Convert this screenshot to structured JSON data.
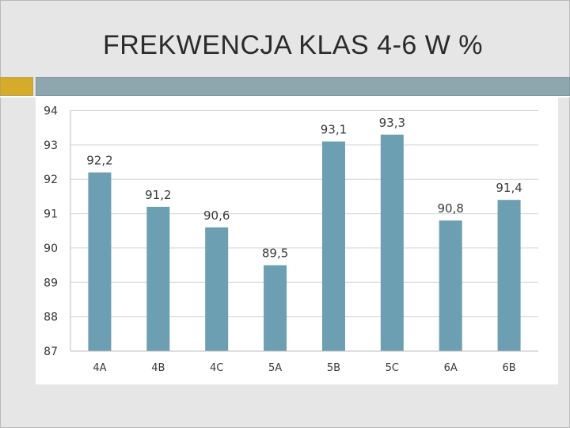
{
  "slide": {
    "title": "FREKWENCJA KLAS 4-6 W %"
  },
  "colors": {
    "bar": "#6b9fb1",
    "grid": "#d4d4d4",
    "accent_gold": "#d4ac2a",
    "accent_blue": "#8ea7ae"
  },
  "chart_data": {
    "type": "bar",
    "categories": [
      "4A",
      "4B",
      "4C",
      "5A",
      "5B",
      "5C",
      "6A",
      "6B"
    ],
    "values": [
      92.2,
      91.2,
      90.6,
      89.5,
      93.1,
      93.3,
      90.8,
      91.4
    ],
    "data_labels": [
      "92,2",
      "91,2",
      "90,6",
      "89,5",
      "93,1",
      "93,3",
      "90,8",
      "91,4"
    ],
    "y_ticks": [
      87,
      88,
      89,
      90,
      91,
      92,
      93,
      94
    ],
    "ylim": [
      87,
      94
    ],
    "grid": true,
    "legend": "none"
  }
}
